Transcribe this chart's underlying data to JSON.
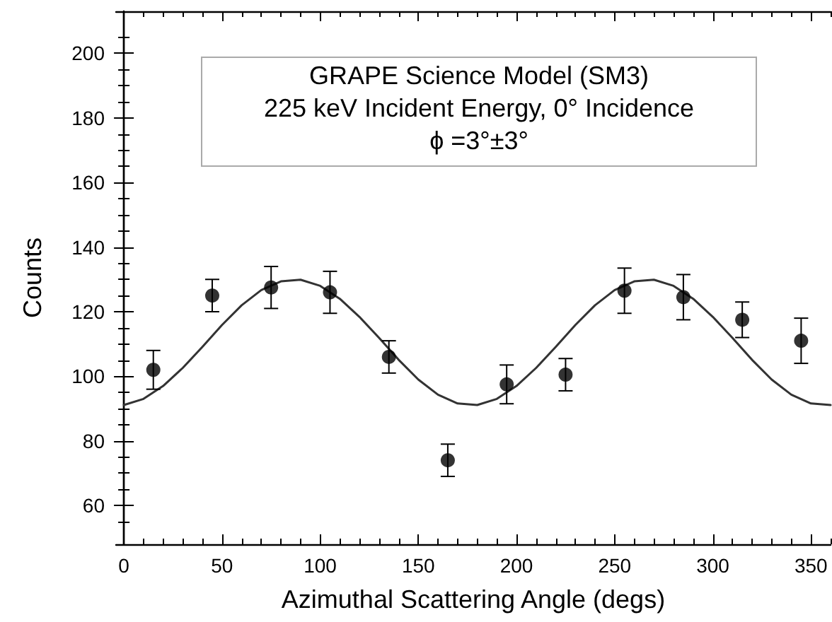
{
  "chart_data": {
    "type": "scatter",
    "xlabel": "Azimuthal Scattering Angle (degs)",
    "ylabel": "Counts",
    "annotations": [
      "GRAPE Science Model (SM3)",
      "225 keV Incident Energy, 0° Incidence",
      "ϕ =3°±3°"
    ],
    "xlim": [
      -4,
      360
    ],
    "ylim": [
      48,
      213
    ],
    "xticks": [
      0,
      50,
      100,
      150,
      200,
      250,
      300,
      350
    ],
    "yticks": [
      60,
      80,
      100,
      120,
      140,
      160,
      180,
      200
    ],
    "grid": false,
    "series": [
      {
        "color": "#000000",
        "marker": "circle",
        "x": [
          15,
          45,
          75,
          105,
          135,
          165,
          195,
          225,
          255,
          285,
          315,
          345
        ],
        "values": [
          102,
          125,
          127.5,
          126,
          106,
          74,
          97.5,
          100.5,
          126.5,
          124.5,
          117.5,
          111
        ],
        "errors": [
          6,
          5,
          6.5,
          6.5,
          5,
          5,
          6,
          5,
          7,
          7,
          5.5,
          7
        ]
      },
      {
        "type": "line",
        "color": "#333333",
        "marker": "none",
        "line_style": "solid",
        "x": [
          0,
          10,
          20,
          30,
          40,
          50,
          60,
          70,
          80,
          90,
          100,
          110,
          120,
          130,
          140,
          150,
          160,
          170,
          180,
          190,
          200,
          210,
          220,
          230,
          240,
          250,
          260,
          270,
          280,
          290,
          300,
          310,
          320,
          330,
          340,
          350,
          360
        ],
        "values": [
          91.1,
          93,
          97,
          102.6,
          109.1,
          115.9,
          122,
          126.7,
          129.4,
          129.9,
          128,
          124,
          118.4,
          111.9,
          105.1,
          99,
          94.3,
          91.6,
          91.1,
          93,
          97,
          102.6,
          109.1,
          115.9,
          122,
          126.7,
          129.4,
          129.9,
          128,
          124,
          118.4,
          111.9,
          105.1,
          99,
          94.3,
          91.6,
          91.1
        ]
      }
    ]
  }
}
